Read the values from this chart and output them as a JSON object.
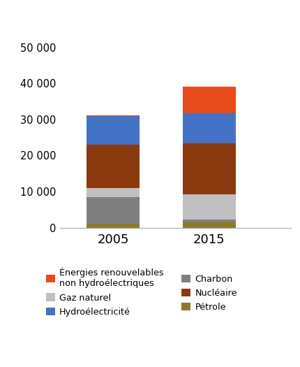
{
  "years": [
    "2005",
    "2015"
  ],
  "series": {
    "Pétrole": [
      1000,
      1500
    ],
    "Charbon": [
      7500,
      800
    ],
    "Gaz naturel": [
      2500,
      7000
    ],
    "Nucléaire": [
      12000,
      14000
    ],
    "Hydroélectricité": [
      8000,
      8500
    ],
    "Énergies renouvelables\nnon hydroélectriques": [
      200,
      7200
    ]
  },
  "colors": {
    "Pétrole": "#8b7b2a",
    "Charbon": "#7f7f7f",
    "Gaz naturel": "#c0c0c0",
    "Nucléaire": "#8b3a0f",
    "Hydroélectricité": "#4472c4",
    "Énergies renouvelables\nnon hydroélectriques": "#e84b1c"
  },
  "ylim": [
    0,
    55000
  ],
  "yticks": [
    0,
    10000,
    20000,
    30000,
    40000,
    50000
  ],
  "ytick_labels": [
    "0",
    "10 000",
    "20 000",
    "30 000",
    "40 000",
    "50 000"
  ],
  "bar_width": 0.55,
  "background_color": "#ffffff",
  "legend_left_col": [
    "Énergies renouvelables\nnon hydroélectriques",
    "Hydroélectricité",
    "Nucléaire"
  ],
  "legend_right_col": [
    "Gaz naturel",
    "Charbon",
    "Pétrole"
  ]
}
